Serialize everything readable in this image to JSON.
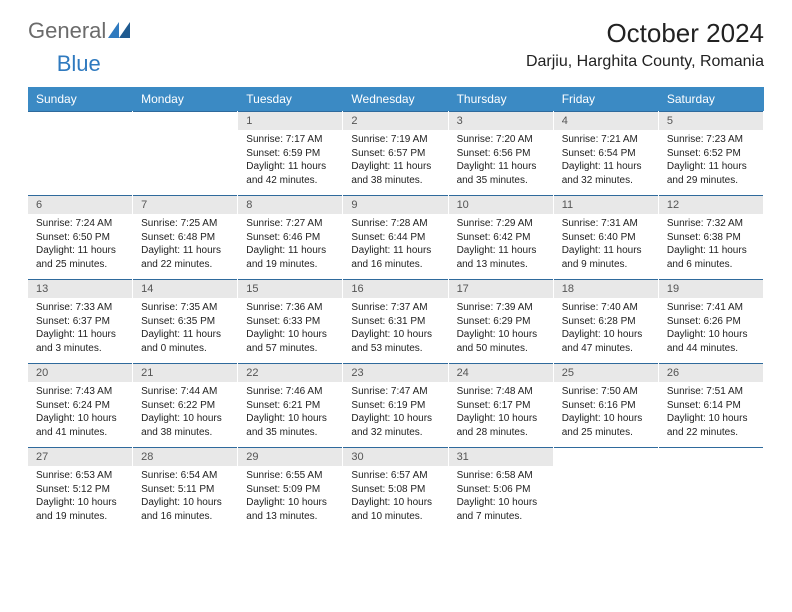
{
  "logo": {
    "part1": "General",
    "part2": "Blue"
  },
  "title": {
    "month": "October 2024",
    "location": "Darjiu, Harghita County, Romania"
  },
  "colors": {
    "header_bg": "#3b8ac4",
    "header_text": "#ffffff",
    "border": "#2f6a9c",
    "daynum_bg": "#e8e8e8",
    "logo_gray": "#6b6b6b",
    "logo_blue": "#2f7abf"
  },
  "weekdays": [
    "Sunday",
    "Monday",
    "Tuesday",
    "Wednesday",
    "Thursday",
    "Friday",
    "Saturday"
  ],
  "weeks": [
    [
      {
        "empty": true
      },
      {
        "empty": true
      },
      {
        "num": "1",
        "sunrise": "Sunrise: 7:17 AM",
        "sunset": "Sunset: 6:59 PM",
        "daylight": "Daylight: 11 hours and 42 minutes."
      },
      {
        "num": "2",
        "sunrise": "Sunrise: 7:19 AM",
        "sunset": "Sunset: 6:57 PM",
        "daylight": "Daylight: 11 hours and 38 minutes."
      },
      {
        "num": "3",
        "sunrise": "Sunrise: 7:20 AM",
        "sunset": "Sunset: 6:56 PM",
        "daylight": "Daylight: 11 hours and 35 minutes."
      },
      {
        "num": "4",
        "sunrise": "Sunrise: 7:21 AM",
        "sunset": "Sunset: 6:54 PM",
        "daylight": "Daylight: 11 hours and 32 minutes."
      },
      {
        "num": "5",
        "sunrise": "Sunrise: 7:23 AM",
        "sunset": "Sunset: 6:52 PM",
        "daylight": "Daylight: 11 hours and 29 minutes."
      }
    ],
    [
      {
        "num": "6",
        "sunrise": "Sunrise: 7:24 AM",
        "sunset": "Sunset: 6:50 PM",
        "daylight": "Daylight: 11 hours and 25 minutes."
      },
      {
        "num": "7",
        "sunrise": "Sunrise: 7:25 AM",
        "sunset": "Sunset: 6:48 PM",
        "daylight": "Daylight: 11 hours and 22 minutes."
      },
      {
        "num": "8",
        "sunrise": "Sunrise: 7:27 AM",
        "sunset": "Sunset: 6:46 PM",
        "daylight": "Daylight: 11 hours and 19 minutes."
      },
      {
        "num": "9",
        "sunrise": "Sunrise: 7:28 AM",
        "sunset": "Sunset: 6:44 PM",
        "daylight": "Daylight: 11 hours and 16 minutes."
      },
      {
        "num": "10",
        "sunrise": "Sunrise: 7:29 AM",
        "sunset": "Sunset: 6:42 PM",
        "daylight": "Daylight: 11 hours and 13 minutes."
      },
      {
        "num": "11",
        "sunrise": "Sunrise: 7:31 AM",
        "sunset": "Sunset: 6:40 PM",
        "daylight": "Daylight: 11 hours and 9 minutes."
      },
      {
        "num": "12",
        "sunrise": "Sunrise: 7:32 AM",
        "sunset": "Sunset: 6:38 PM",
        "daylight": "Daylight: 11 hours and 6 minutes."
      }
    ],
    [
      {
        "num": "13",
        "sunrise": "Sunrise: 7:33 AM",
        "sunset": "Sunset: 6:37 PM",
        "daylight": "Daylight: 11 hours and 3 minutes."
      },
      {
        "num": "14",
        "sunrise": "Sunrise: 7:35 AM",
        "sunset": "Sunset: 6:35 PM",
        "daylight": "Daylight: 11 hours and 0 minutes."
      },
      {
        "num": "15",
        "sunrise": "Sunrise: 7:36 AM",
        "sunset": "Sunset: 6:33 PM",
        "daylight": "Daylight: 10 hours and 57 minutes."
      },
      {
        "num": "16",
        "sunrise": "Sunrise: 7:37 AM",
        "sunset": "Sunset: 6:31 PM",
        "daylight": "Daylight: 10 hours and 53 minutes."
      },
      {
        "num": "17",
        "sunrise": "Sunrise: 7:39 AM",
        "sunset": "Sunset: 6:29 PM",
        "daylight": "Daylight: 10 hours and 50 minutes."
      },
      {
        "num": "18",
        "sunrise": "Sunrise: 7:40 AM",
        "sunset": "Sunset: 6:28 PM",
        "daylight": "Daylight: 10 hours and 47 minutes."
      },
      {
        "num": "19",
        "sunrise": "Sunrise: 7:41 AM",
        "sunset": "Sunset: 6:26 PM",
        "daylight": "Daylight: 10 hours and 44 minutes."
      }
    ],
    [
      {
        "num": "20",
        "sunrise": "Sunrise: 7:43 AM",
        "sunset": "Sunset: 6:24 PM",
        "daylight": "Daylight: 10 hours and 41 minutes."
      },
      {
        "num": "21",
        "sunrise": "Sunrise: 7:44 AM",
        "sunset": "Sunset: 6:22 PM",
        "daylight": "Daylight: 10 hours and 38 minutes."
      },
      {
        "num": "22",
        "sunrise": "Sunrise: 7:46 AM",
        "sunset": "Sunset: 6:21 PM",
        "daylight": "Daylight: 10 hours and 35 minutes."
      },
      {
        "num": "23",
        "sunrise": "Sunrise: 7:47 AM",
        "sunset": "Sunset: 6:19 PM",
        "daylight": "Daylight: 10 hours and 32 minutes."
      },
      {
        "num": "24",
        "sunrise": "Sunrise: 7:48 AM",
        "sunset": "Sunset: 6:17 PM",
        "daylight": "Daylight: 10 hours and 28 minutes."
      },
      {
        "num": "25",
        "sunrise": "Sunrise: 7:50 AM",
        "sunset": "Sunset: 6:16 PM",
        "daylight": "Daylight: 10 hours and 25 minutes."
      },
      {
        "num": "26",
        "sunrise": "Sunrise: 7:51 AM",
        "sunset": "Sunset: 6:14 PM",
        "daylight": "Daylight: 10 hours and 22 minutes."
      }
    ],
    [
      {
        "num": "27",
        "sunrise": "Sunrise: 6:53 AM",
        "sunset": "Sunset: 5:12 PM",
        "daylight": "Daylight: 10 hours and 19 minutes."
      },
      {
        "num": "28",
        "sunrise": "Sunrise: 6:54 AM",
        "sunset": "Sunset: 5:11 PM",
        "daylight": "Daylight: 10 hours and 16 minutes."
      },
      {
        "num": "29",
        "sunrise": "Sunrise: 6:55 AM",
        "sunset": "Sunset: 5:09 PM",
        "daylight": "Daylight: 10 hours and 13 minutes."
      },
      {
        "num": "30",
        "sunrise": "Sunrise: 6:57 AM",
        "sunset": "Sunset: 5:08 PM",
        "daylight": "Daylight: 10 hours and 10 minutes."
      },
      {
        "num": "31",
        "sunrise": "Sunrise: 6:58 AM",
        "sunset": "Sunset: 5:06 PM",
        "daylight": "Daylight: 10 hours and 7 minutes."
      },
      {
        "empty": true
      },
      {
        "empty": true
      }
    ]
  ]
}
